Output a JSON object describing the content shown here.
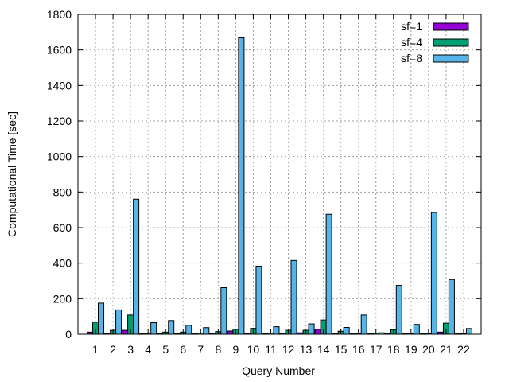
{
  "chart_data": {
    "type": "bar",
    "title": "",
    "xlabel": "Query Number",
    "ylabel": "Computational Time [sec]",
    "ylim": [
      0,
      1800
    ],
    "yticks": [
      0,
      200,
      400,
      600,
      800,
      1000,
      1200,
      1400,
      1600,
      1800
    ],
    "grid": true,
    "legend_position": "top-right",
    "categories": [
      "1",
      "2",
      "3",
      "4",
      "5",
      "6",
      "7",
      "8",
      "9",
      "10",
      "11",
      "12",
      "13",
      "14",
      "15",
      "16",
      "17",
      "18",
      "19",
      "20",
      "21",
      "22"
    ],
    "series": [
      {
        "name": "sf=1",
        "color": "#9400d3",
        "values": [
          12,
          4,
          22,
          2,
          3,
          3,
          2,
          5,
          18,
          5,
          2,
          5,
          8,
          28,
          5,
          2,
          2,
          5,
          2,
          2,
          12,
          2
        ]
      },
      {
        "name": "sf=4",
        "color": "#009e73",
        "values": [
          68,
          22,
          108,
          5,
          12,
          12,
          7,
          15,
          28,
          33,
          7,
          22,
          22,
          80,
          17,
          3,
          7,
          26,
          3,
          3,
          62,
          3
        ]
      },
      {
        "name": "sf=8",
        "color": "#56b4e9",
        "values": [
          175,
          137,
          760,
          65,
          77,
          50,
          37,
          262,
          1668,
          383,
          42,
          415,
          58,
          675,
          38,
          108,
          8,
          275,
          55,
          685,
          308,
          32
        ]
      }
    ]
  }
}
